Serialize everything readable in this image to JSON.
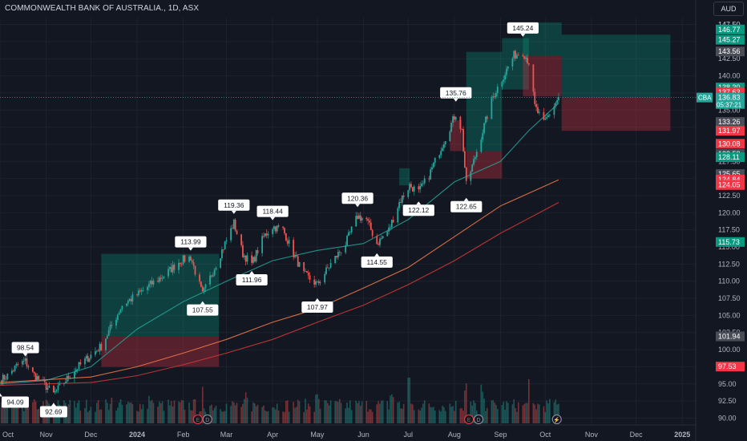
{
  "header": {
    "title": "COMMONWEALTH BANK OF AUSTRALIA., 1D, ASX",
    "currency": "AUD"
  },
  "chart_data": {
    "type": "candlestick",
    "symbol": "CBA",
    "interval": "1D",
    "price_axis": {
      "ticks": [
        90.0,
        92.5,
        95.0,
        97.5,
        100.0,
        102.5,
        105.0,
        107.5,
        110.0,
        112.5,
        115.0,
        117.5,
        120.0,
        122.5,
        125.0,
        127.5,
        130.0,
        132.5,
        135.0,
        137.5,
        140.0,
        142.5,
        145.0,
        147.5
      ],
      "range": [
        89.0,
        148.5
      ]
    },
    "time_axis": {
      "labels": [
        "Oct",
        "Nov",
        "Dec",
        "2024",
        "Feb",
        "Mar",
        "Apr",
        "May",
        "Jun",
        "Jul",
        "Aug",
        "Sep",
        "Oct",
        "Nov",
        "Dec",
        "2025"
      ],
      "bold": [
        "2024",
        "2025"
      ],
      "range": [
        "2023-10-01",
        "2025-01-10"
      ]
    },
    "close_path": [
      [
        "2023-10-01",
        95.5
      ],
      [
        "2023-10-06",
        96.2
      ],
      [
        "2023-10-13",
        97.8
      ],
      [
        "2023-10-18",
        98.3
      ],
      [
        "2023-10-23",
        96.5
      ],
      [
        "2023-10-30",
        95.1
      ],
      [
        "2023-11-06",
        93.5
      ],
      [
        "2023-11-10",
        94.5
      ],
      [
        "2023-11-20",
        97.0
      ],
      [
        "2023-11-30",
        99.0
      ],
      [
        "2023-12-08",
        100.5
      ],
      [
        "2023-12-15",
        103.5
      ],
      [
        "2023-12-22",
        106.5
      ],
      [
        "2024-01-01",
        108.0
      ],
      [
        "2024-01-10",
        109.5
      ],
      [
        "2024-01-20",
        111.0
      ],
      [
        "2024-01-30",
        113.0
      ],
      [
        "2024-02-06",
        113.5
      ],
      [
        "2024-02-14",
        108.0
      ],
      [
        "2024-02-20",
        111.0
      ],
      [
        "2024-02-28",
        115.0
      ],
      [
        "2024-03-06",
        118.5
      ],
      [
        "2024-03-12",
        114.0
      ],
      [
        "2024-03-18",
        112.5
      ],
      [
        "2024-03-26",
        116.5
      ],
      [
        "2024-04-01",
        118.0
      ],
      [
        "2024-04-08",
        117.5
      ],
      [
        "2024-04-15",
        114.0
      ],
      [
        "2024-04-22",
        111.0
      ],
      [
        "2024-05-01",
        109.5
      ],
      [
        "2024-05-10",
        112.5
      ],
      [
        "2024-05-20",
        115.5
      ],
      [
        "2024-05-28",
        119.5
      ],
      [
        "2024-06-03",
        119.0
      ],
      [
        "2024-06-10",
        115.5
      ],
      [
        "2024-06-18",
        117.5
      ],
      [
        "2024-06-25",
        121.5
      ],
      [
        "2024-07-02",
        124.0
      ],
      [
        "2024-07-08",
        123.0
      ],
      [
        "2024-07-15",
        125.5
      ],
      [
        "2024-07-22",
        129.0
      ],
      [
        "2024-07-29",
        132.5
      ],
      [
        "2024-08-02",
        134.5
      ],
      [
        "2024-08-06",
        132.0
      ],
      [
        "2024-08-09",
        124.0
      ],
      [
        "2024-08-14",
        127.5
      ],
      [
        "2024-08-20",
        132.0
      ],
      [
        "2024-08-27",
        137.0
      ],
      [
        "2024-09-03",
        140.0
      ],
      [
        "2024-09-10",
        143.0
      ],
      [
        "2024-09-16",
        143.5
      ],
      [
        "2024-09-20",
        142.0
      ],
      [
        "2024-09-24",
        135.5
      ],
      [
        "2024-09-30",
        133.0
      ],
      [
        "2024-10-04",
        134.5
      ],
      [
        "2024-10-10",
        136.83
      ]
    ],
    "moving_averages": [
      {
        "color": "#26a69a",
        "points": [
          [
            "2023-10-01",
            95.0
          ],
          [
            "2023-11-01",
            95.5
          ],
          [
            "2023-12-01",
            97.5
          ],
          [
            "2024-01-01",
            103.0
          ],
          [
            "2024-02-01",
            107.0
          ],
          [
            "2024-03-01",
            110.0
          ],
          [
            "2024-04-01",
            113.0
          ],
          [
            "2024-05-01",
            114.5
          ],
          [
            "2024-06-01",
            115.5
          ],
          [
            "2024-07-01",
            119.0
          ],
          [
            "2024-08-01",
            124.5
          ],
          [
            "2024-09-01",
            127.5
          ],
          [
            "2024-09-20",
            132.0
          ],
          [
            "2024-10-10",
            136.0
          ]
        ]
      },
      {
        "color": "#f57c4a",
        "points": [
          [
            "2023-10-01",
            95.2
          ],
          [
            "2023-12-01",
            96.0
          ],
          [
            "2024-01-01",
            97.5
          ],
          [
            "2024-02-01",
            99.5
          ],
          [
            "2024-03-01",
            101.5
          ],
          [
            "2024-04-01",
            104.0
          ],
          [
            "2024-05-01",
            106.0
          ],
          [
            "2024-06-01",
            109.0
          ],
          [
            "2024-07-01",
            112.0
          ],
          [
            "2024-08-01",
            116.5
          ],
          [
            "2024-09-01",
            121.0
          ],
          [
            "2024-10-10",
            124.8
          ]
        ]
      },
      {
        "color": "#d63a3a",
        "points": [
          [
            "2023-10-01",
            94.8
          ],
          [
            "2023-12-01",
            95.2
          ],
          [
            "2024-01-01",
            96.2
          ],
          [
            "2024-02-01",
            97.8
          ],
          [
            "2024-03-01",
            99.5
          ],
          [
            "2024-04-01",
            101.5
          ],
          [
            "2024-05-01",
            104.0
          ],
          [
            "2024-06-01",
            106.5
          ],
          [
            "2024-07-01",
            109.5
          ],
          [
            "2024-08-01",
            113.0
          ],
          [
            "2024-09-01",
            117.0
          ],
          [
            "2024-10-10",
            121.5
          ]
        ]
      }
    ],
    "annotations": [
      {
        "date": "2023-10-18",
        "price": 98.54,
        "label": "98.54",
        "pos": "above"
      },
      {
        "date": "2023-10-01",
        "price": 94.09,
        "label": "94.09",
        "pos": "below"
      },
      {
        "date": "2023-11-06",
        "price": 92.69,
        "label": "92.69",
        "pos": "below"
      },
      {
        "date": "2024-02-06",
        "price": 113.99,
        "label": "113.99",
        "pos": "above"
      },
      {
        "date": "2024-02-14",
        "price": 107.55,
        "label": "107.55",
        "pos": "below"
      },
      {
        "date": "2024-03-06",
        "price": 119.36,
        "label": "119.36",
        "pos": "above"
      },
      {
        "date": "2024-03-18",
        "price": 111.96,
        "label": "111.96",
        "pos": "below"
      },
      {
        "date": "2024-04-01",
        "price": 118.44,
        "label": "118.44",
        "pos": "above"
      },
      {
        "date": "2024-05-01",
        "price": 107.97,
        "label": "107.97",
        "pos": "below"
      },
      {
        "date": "2024-05-28",
        "price": 120.36,
        "label": "120.36",
        "pos": "above"
      },
      {
        "date": "2024-06-10",
        "price": 114.55,
        "label": "114.55",
        "pos": "below"
      },
      {
        "date": "2024-07-08",
        "price": 122.12,
        "label": "122.12",
        "pos": "below"
      },
      {
        "date": "2024-08-02",
        "price": 135.76,
        "label": "135.76",
        "pos": "above"
      },
      {
        "date": "2024-08-09",
        "price": 122.65,
        "label": "122.65",
        "pos": "below"
      },
      {
        "date": "2024-09-16",
        "price": 145.24,
        "label": "145.24",
        "pos": "above"
      }
    ],
    "zones": [
      {
        "start": "2023-12-08",
        "end": "2024-02-25",
        "top": 113.99,
        "bottom": 102.0,
        "color": "green"
      },
      {
        "start": "2023-12-08",
        "end": "2024-02-25",
        "top": 102.0,
        "bottom": 97.5,
        "color": "red"
      },
      {
        "start": "2024-06-25",
        "end": "2024-07-02",
        "top": 126.5,
        "bottom": 124.0,
        "color": "green"
      },
      {
        "start": "2024-07-29",
        "end": "2024-08-06",
        "top": 133.5,
        "bottom": 129.0,
        "color": "red"
      },
      {
        "start": "2024-08-09",
        "end": "2024-09-02",
        "top": 143.5,
        "bottom": 129.0,
        "color": "green"
      },
      {
        "start": "2024-08-09",
        "end": "2024-09-02",
        "top": 129.0,
        "bottom": 125.0,
        "color": "red"
      },
      {
        "start": "2024-09-02",
        "end": "2024-09-20",
        "top": 145.5,
        "bottom": 138.0,
        "color": "green"
      },
      {
        "start": "2024-09-16",
        "end": "2024-10-12",
        "top": 147.8,
        "bottom": 143.0,
        "color": "green"
      },
      {
        "start": "2024-09-16",
        "end": "2024-10-12",
        "top": 143.0,
        "bottom": 137.0,
        "color": "red"
      },
      {
        "start": "2024-10-12",
        "end": "2024-12-24",
        "top": 146.0,
        "bottom": 136.83,
        "color": "green"
      },
      {
        "start": "2024-10-12",
        "end": "2024-12-24",
        "top": 136.83,
        "bottom": 131.97,
        "color": "red"
      }
    ],
    "price_tags": [
      {
        "price": 147.5,
        "label": "147.50",
        "bg": "#131722",
        "fg": "#b2b5be",
        "plain": true
      },
      {
        "price": 146.77,
        "label": "146.77",
        "bg": "#089981",
        "fg": "#ffffff"
      },
      {
        "price": 145.27,
        "label": "145.27",
        "bg": "#089981",
        "fg": "#ffffff"
      },
      {
        "price": 143.56,
        "label": "143.56",
        "bg": "#4a4d57",
        "fg": "#ffffff"
      },
      {
        "price": 138.3,
        "label": "138.30",
        "bg": "#089981",
        "fg": "#ffffff"
      },
      {
        "price": 137.63,
        "label": "137.63",
        "bg": "#f23645",
        "fg": "#ffffff"
      },
      {
        "price": 136.85,
        "label": "136.85",
        "bg": "#363a45",
        "fg": "#ffffff"
      },
      {
        "price": 133.26,
        "label": "133.26",
        "bg": "#4a4d57",
        "fg": "#ffffff"
      },
      {
        "price": 131.97,
        "label": "131.97",
        "bg": "#f23645",
        "fg": "#ffffff"
      },
      {
        "price": 130.08,
        "label": "130.08",
        "bg": "#f23645",
        "fg": "#ffffff"
      },
      {
        "price": 128.58,
        "label": "128.58",
        "bg": "#4a4d57",
        "fg": "#ffffff"
      },
      {
        "price": 128.11,
        "label": "128.11",
        "bg": "#089981",
        "fg": "#ffffff"
      },
      {
        "price": 125.65,
        "label": "125.65",
        "bg": "#4a4d57",
        "fg": "#ffffff"
      },
      {
        "price": 124.84,
        "label": "124.84",
        "bg": "#f23645",
        "fg": "#ffffff"
      },
      {
        "price": 124.05,
        "label": "124.05",
        "bg": "#f23645",
        "fg": "#ffffff"
      },
      {
        "price": 115.73,
        "label": "115.73",
        "bg": "#089981",
        "fg": "#ffffff"
      },
      {
        "price": 101.94,
        "label": "101.94",
        "bg": "#4a4d57",
        "fg": "#ffffff"
      },
      {
        "price": 97.53,
        "label": "97.53",
        "bg": "#f23645",
        "fg": "#ffffff"
      }
    ],
    "last_price": {
      "symbol": "CBA",
      "price": 136.83,
      "label": "136.83",
      "countdown": "05:37:21",
      "color": "#26a69a"
    },
    "events": [
      {
        "date": "2024-02-14",
        "glyphs": [
          "E",
          "D"
        ]
      },
      {
        "date": "2024-08-14",
        "glyphs": [
          "E",
          "D"
        ]
      },
      {
        "date": "2024-10-12",
        "glyphs": [
          "⚡"
        ]
      }
    ],
    "volume_peaks": [
      [
        "2023-10-15",
        0.35
      ],
      [
        "2023-11-15",
        0.4
      ],
      [
        "2023-12-15",
        0.45
      ],
      [
        "2024-01-10",
        0.5
      ],
      [
        "2024-02-14",
        0.6
      ],
      [
        "2024-03-15",
        0.55
      ],
      [
        "2024-05-01",
        0.5
      ],
      [
        "2024-06-20",
        0.55
      ],
      [
        "2024-07-01",
        0.85
      ],
      [
        "2024-08-09",
        0.7
      ],
      [
        "2024-08-20",
        0.65
      ],
      [
        "2024-09-20",
        0.75
      ],
      [
        "2024-10-05",
        0.4
      ]
    ]
  }
}
